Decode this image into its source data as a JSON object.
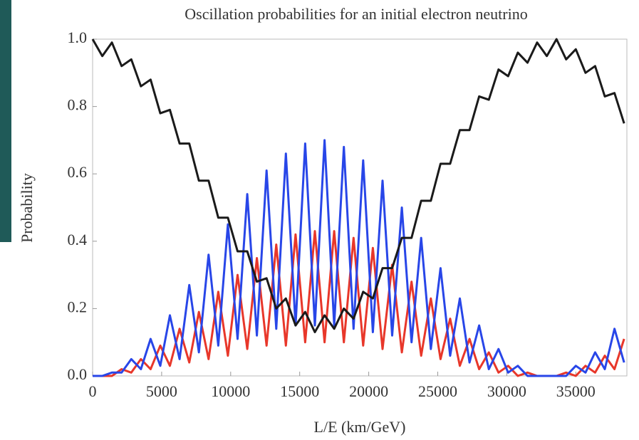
{
  "chart_data": {
    "type": "line",
    "title": "Oscillation probabilities for an initial electron neutrino",
    "xlabel": "L/E (km/GeV)",
    "ylabel": "Probability",
    "x": [
      0,
      700,
      1400,
      2100,
      2800,
      3500,
      4200,
      4900,
      5600,
      6300,
      7000,
      7700,
      8400,
      9100,
      9800,
      10500,
      11200,
      11900,
      12600,
      13300,
      14000,
      14700,
      15400,
      16100,
      16800,
      17500,
      18200,
      18900,
      19600,
      20300,
      21000,
      21700,
      22400,
      23100,
      23800,
      24500,
      25200,
      25900,
      26600,
      27300,
      28000,
      28700,
      29400,
      30100,
      30800,
      31500,
      32200,
      32900,
      33600,
      34300,
      35000,
      35700,
      36400,
      37100,
      37800,
      38500
    ],
    "series": [
      {
        "color": "#1a1a1a",
        "values": [
          1.0,
          0.95,
          0.99,
          0.92,
          0.94,
          0.86,
          0.88,
          0.78,
          0.79,
          0.69,
          0.69,
          0.58,
          0.58,
          0.47,
          0.47,
          0.37,
          0.37,
          0.28,
          0.29,
          0.2,
          0.23,
          0.15,
          0.19,
          0.13,
          0.18,
          0.14,
          0.2,
          0.17,
          0.25,
          0.23,
          0.32,
          0.32,
          0.41,
          0.41,
          0.52,
          0.52,
          0.63,
          0.63,
          0.73,
          0.73,
          0.83,
          0.82,
          0.91,
          0.89,
          0.96,
          0.93,
          0.99,
          0.95,
          1.0,
          0.94,
          0.97,
          0.9,
          0.92,
          0.83,
          0.84,
          0.75
        ]
      },
      {
        "color": "#2846e8",
        "values": [
          0.0,
          0.0,
          0.01,
          0.01,
          0.05,
          0.02,
          0.11,
          0.03,
          0.18,
          0.05,
          0.27,
          0.07,
          0.36,
          0.09,
          0.45,
          0.11,
          0.54,
          0.12,
          0.61,
          0.14,
          0.66,
          0.15,
          0.69,
          0.15,
          0.7,
          0.15,
          0.68,
          0.14,
          0.64,
          0.13,
          0.58,
          0.12,
          0.5,
          0.1,
          0.41,
          0.08,
          0.32,
          0.06,
          0.23,
          0.04,
          0.15,
          0.02,
          0.08,
          0.01,
          0.03,
          0.0,
          0.0,
          0.0,
          0.0,
          0.0,
          0.03,
          0.01,
          0.07,
          0.02,
          0.14,
          0.04
        ]
      },
      {
        "color": "#e8372a",
        "values": [
          0.0,
          0.0,
          0.0,
          0.02,
          0.01,
          0.05,
          0.02,
          0.09,
          0.03,
          0.14,
          0.04,
          0.19,
          0.05,
          0.25,
          0.06,
          0.3,
          0.08,
          0.35,
          0.09,
          0.39,
          0.09,
          0.42,
          0.1,
          0.43,
          0.1,
          0.43,
          0.1,
          0.41,
          0.09,
          0.38,
          0.08,
          0.33,
          0.07,
          0.28,
          0.06,
          0.23,
          0.05,
          0.17,
          0.03,
          0.11,
          0.02,
          0.07,
          0.01,
          0.03,
          0.0,
          0.01,
          0.0,
          0.0,
          0.0,
          0.01,
          0.0,
          0.03,
          0.01,
          0.06,
          0.02,
          0.11
        ]
      }
    ],
    "xlim": [
      0,
      38700
    ],
    "xticks": [
      0,
      5000,
      10000,
      15000,
      20000,
      25000,
      30000,
      35000
    ],
    "ylim": [
      0,
      1
    ],
    "yticks": [
      {
        "value": 0,
        "label": "0.0"
      },
      {
        "value": 0.2,
        "label": "0.2"
      },
      {
        "value": 0.4,
        "label": "0.4"
      },
      {
        "value": 0.6,
        "label": "0.6"
      },
      {
        "value": 0.8,
        "label": "0.8"
      },
      {
        "value": 1,
        "label": "1.0"
      }
    ]
  }
}
